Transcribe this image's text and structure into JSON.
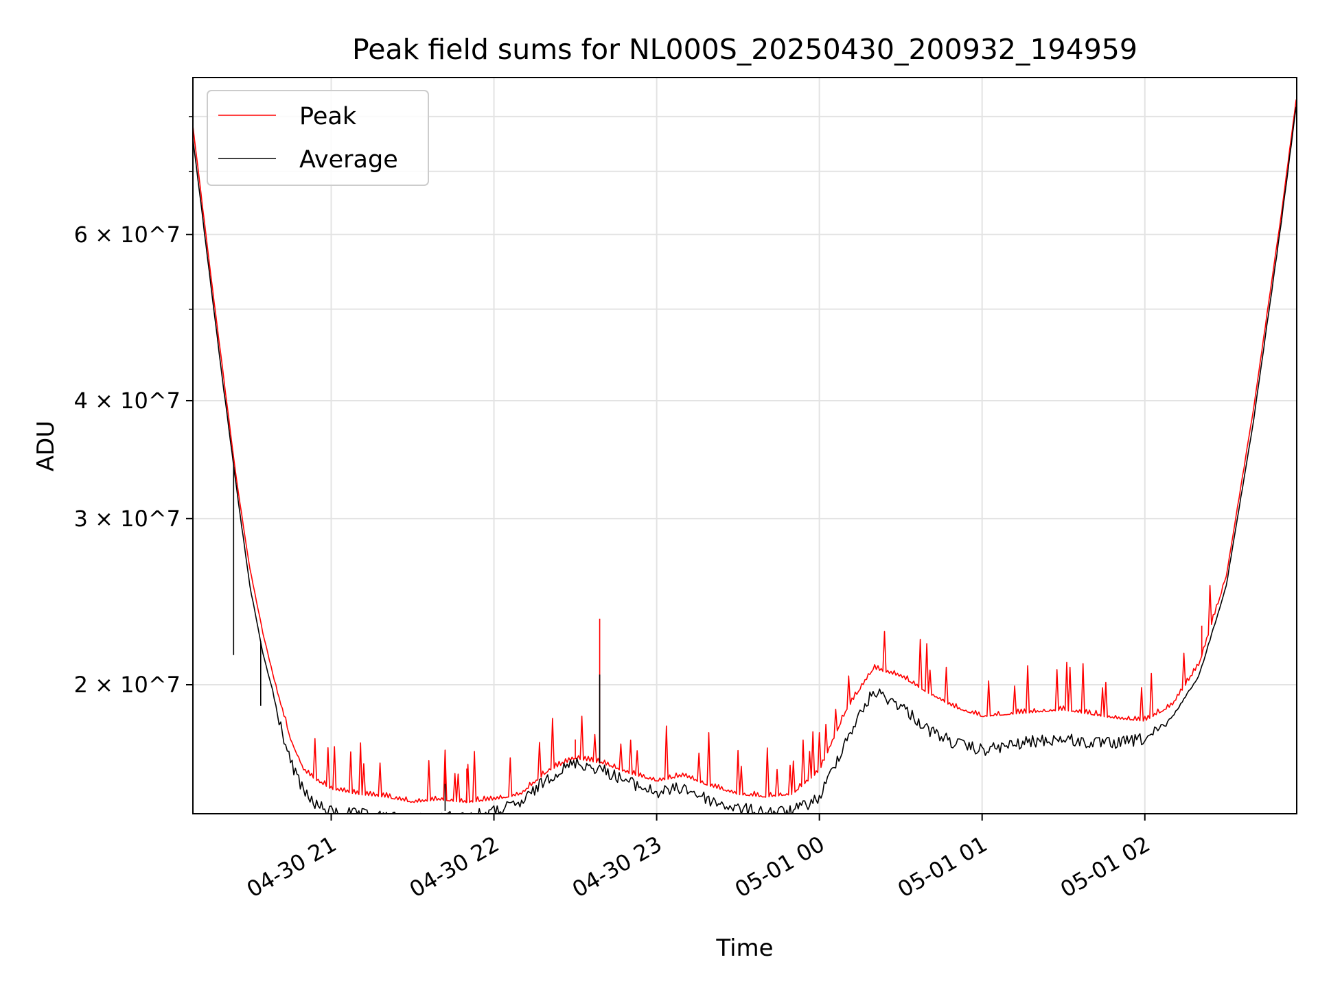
{
  "chart_data": {
    "type": "line",
    "title": "Peak field sums for NL000S_20250430_200932_194959",
    "xlabel": "Time",
    "ylabel": "ADU",
    "x_ticks": [
      "04-30 21",
      "04-30 22",
      "04-30 23",
      "05-01 00",
      "05-01 01",
      "05-01 02"
    ],
    "y_ticks": [
      {
        "value": 20000000,
        "label": "2 × 10^7"
      },
      {
        "value": 30000000,
        "label": "3 × 10^7"
      },
      {
        "value": 40000000,
        "label": "4 × 10^7"
      },
      {
        "value": 60000000,
        "label": "6 × 10^7"
      }
    ],
    "y_scale": "log",
    "xlim": [
      "2025-04-30 20:09",
      "2025-05-01 02:56"
    ],
    "ylim": [
      14600000,
      88000000
    ],
    "grid": true,
    "legend_position": "top-left",
    "series": [
      {
        "name": "Peak",
        "color": "#ff0000",
        "x": [
          "2025-04-30 20:09",
          "2025-04-30 20:15",
          "2025-04-30 20:20",
          "2025-04-30 20:25",
          "2025-04-30 20:30",
          "2025-04-30 20:35",
          "2025-04-30 20:40",
          "2025-04-30 20:45",
          "2025-04-30 20:50",
          "2025-04-30 20:55",
          "2025-04-30 21:00",
          "2025-04-30 21:10",
          "2025-04-30 21:20",
          "2025-04-30 21:30",
          "2025-04-30 21:40",
          "2025-04-30 21:50",
          "2025-04-30 22:00",
          "2025-04-30 22:10",
          "2025-04-30 22:20",
          "2025-04-30 22:30",
          "2025-04-30 22:40",
          "2025-04-30 22:50",
          "2025-04-30 23:00",
          "2025-04-30 23:10",
          "2025-04-30 23:20",
          "2025-04-30 23:30",
          "2025-04-30 23:40",
          "2025-04-30 23:50",
          "2025-05-01 00:00",
          "2025-05-01 00:10",
          "2025-05-01 00:20",
          "2025-05-01 00:30",
          "2025-05-01 00:40",
          "2025-05-01 00:50",
          "2025-05-01 01:00",
          "2025-05-01 01:10",
          "2025-05-01 01:20",
          "2025-05-01 01:30",
          "2025-05-01 01:40",
          "2025-05-01 01:50",
          "2025-05-01 02:00",
          "2025-05-01 02:10",
          "2025-05-01 02:20",
          "2025-05-01 02:30",
          "2025-05-01 02:40",
          "2025-05-01 02:50",
          "2025-05-01 02:56"
        ],
        "values": [
          78000000,
          56000000,
          43000000,
          33000000,
          26500000,
          22500000,
          19700000,
          17500000,
          16200000,
          15800000,
          15500000,
          15300000,
          15200000,
          15000000,
          15100000,
          15000000,
          15100000,
          15300000,
          16200000,
          16700000,
          16500000,
          16100000,
          15800000,
          16000000,
          15600000,
          15300000,
          15200000,
          15300000,
          16200000,
          18800000,
          20800000,
          20400000,
          19600000,
          18900000,
          18500000,
          18600000,
          18700000,
          18800000,
          18600000,
          18400000,
          18300000,
          19000000,
          21000000,
          26000000,
          39000000,
          62000000,
          84000000
        ],
        "spikes": [
          {
            "x": "2025-04-30 21:42",
            "value": 16900000
          },
          {
            "x": "2025-04-30 21:50",
            "value": 16300000
          },
          {
            "x": "2025-04-30 22:30",
            "value": 17500000
          },
          {
            "x": "2025-04-30 22:39",
            "value": 23500000
          },
          {
            "x": "2025-05-01 02:21",
            "value": 23100000
          }
        ]
      },
      {
        "name": "Average",
        "color": "#000000",
        "x": [
          "2025-04-30 20:09",
          "2025-04-30 20:15",
          "2025-04-30 20:20",
          "2025-04-30 20:25",
          "2025-04-30 20:30",
          "2025-04-30 20:35",
          "2025-04-30 20:40",
          "2025-04-30 20:45",
          "2025-04-30 20:50",
          "2025-04-30 20:55",
          "2025-04-30 21:00",
          "2025-04-30 21:10",
          "2025-04-30 21:20",
          "2025-04-30 21:30",
          "2025-04-30 21:40",
          "2025-04-30 21:50",
          "2025-04-30 22:00",
          "2025-04-30 22:10",
          "2025-04-30 22:20",
          "2025-04-30 22:30",
          "2025-04-30 22:40",
          "2025-04-30 22:50",
          "2025-04-30 23:00",
          "2025-04-30 23:10",
          "2025-04-30 23:20",
          "2025-04-30 23:30",
          "2025-04-30 23:40",
          "2025-04-30 23:50",
          "2025-05-01 00:00",
          "2025-05-01 00:10",
          "2025-05-01 00:20",
          "2025-05-01 00:30",
          "2025-05-01 00:40",
          "2025-05-01 00:50",
          "2025-05-01 01:00",
          "2025-05-01 01:10",
          "2025-05-01 01:20",
          "2025-05-01 01:30",
          "2025-05-01 01:40",
          "2025-05-01 01:50",
          "2025-05-01 02:00",
          "2025-05-01 02:10",
          "2025-05-01 02:20",
          "2025-05-01 02:30",
          "2025-05-01 02:40",
          "2025-05-01 02:50",
          "2025-05-01 02:56"
        ],
        "values": [
          76000000,
          55000000,
          42000000,
          32500000,
          25500000,
          21500000,
          19000000,
          16800000,
          15600000,
          15100000,
          14900000,
          14800000,
          14700000,
          14600000,
          14700000,
          14700000,
          14900000,
          15200000,
          16200000,
          16800000,
          16500000,
          16000000,
          15600000,
          15800000,
          15300000,
          15000000,
          14900000,
          14900000,
          15400000,
          17800000,
          20000000,
          19300000,
          18200000,
          17600000,
          17300000,
          17500000,
          17700000,
          17800000,
          17600000,
          17600000,
          17800000,
          18500000,
          20500000,
          25500000,
          38000000,
          61000000,
          83000000
        ],
        "spikes": [
          {
            "x": "2025-04-30 20:24",
            "value": 21500000
          },
          {
            "x": "2025-04-30 20:34",
            "value": 19000000
          },
          {
            "x": "2025-04-30 21:42",
            "value": 15700000
          },
          {
            "x": "2025-04-30 22:39",
            "value": 20500000
          }
        ]
      }
    ]
  }
}
